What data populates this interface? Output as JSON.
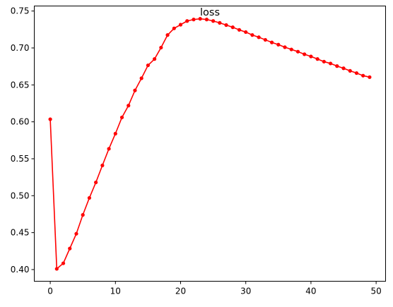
{
  "chart_data": {
    "type": "line",
    "title": "loss",
    "xlabel": "",
    "ylabel": "",
    "xlim": [
      -2.45,
      51.45
    ],
    "ylim": [
      0.3842,
      0.7568
    ],
    "xticks": [
      0,
      10,
      20,
      30,
      40,
      50
    ],
    "yticks": [
      0.4,
      0.45,
      0.5,
      0.55,
      0.6,
      0.65,
      0.7,
      0.75
    ],
    "xtick_labels": [
      "0",
      "10",
      "20",
      "30",
      "40",
      "50"
    ],
    "ytick_labels": [
      "0.40",
      "0.45",
      "0.50",
      "0.55",
      "0.60",
      "0.65",
      "0.70",
      "0.75"
    ],
    "grid": false,
    "legend": "none",
    "series": [
      {
        "color": "#ff0000",
        "marker": "circle",
        "x": [
          0,
          1,
          2,
          3,
          4,
          5,
          6,
          7,
          8,
          9,
          10,
          11,
          12,
          13,
          14,
          15,
          16,
          17,
          18,
          19,
          20,
          21,
          22,
          23,
          24,
          25,
          26,
          27,
          28,
          29,
          30,
          31,
          32,
          33,
          34,
          35,
          36,
          37,
          38,
          39,
          40,
          41,
          42,
          43,
          44,
          45,
          46,
          47,
          48,
          49
        ],
        "y": [
          0.6035,
          0.401,
          0.4085,
          0.4285,
          0.4485,
          0.474,
          0.497,
          0.518,
          0.541,
          0.5635,
          0.584,
          0.606,
          0.622,
          0.6425,
          0.659,
          0.6765,
          0.685,
          0.7005,
          0.7175,
          0.7265,
          0.7315,
          0.7365,
          0.7385,
          0.7395,
          0.7385,
          0.7365,
          0.734,
          0.731,
          0.728,
          0.7245,
          0.7215,
          0.7175,
          0.7145,
          0.711,
          0.7075,
          0.7045,
          0.701,
          0.698,
          0.695,
          0.6915,
          0.6885,
          0.685,
          0.6815,
          0.679,
          0.6755,
          0.6725,
          0.669,
          0.666,
          0.6625,
          0.6605
        ]
      }
    ]
  }
}
